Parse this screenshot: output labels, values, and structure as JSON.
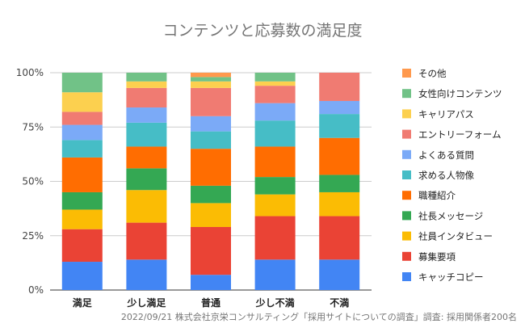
{
  "chart_data": {
    "type": "bar",
    "stacked": true,
    "percent": true,
    "title": "コンテンツと応募数の満足度",
    "footnote": "2022/09/21 株式会社京栄コンサルティング「採用サイトについての調査」調査: 採用関係者200名",
    "categories": [
      "満足",
      "少し満足",
      "普通",
      "少し不満",
      "不満"
    ],
    "ylim": [
      0,
      100
    ],
    "yticks": [
      "0%",
      "25%",
      "50%",
      "75%",
      "100%"
    ],
    "grid": true,
    "legend_position": "right",
    "series": [
      {
        "name": "キャッチコピー",
        "color": "#4285F4",
        "values": [
          13,
          14,
          7,
          14,
          14
        ]
      },
      {
        "name": "募集要項",
        "color": "#EA4335",
        "values": [
          15,
          17,
          22,
          20,
          20
        ]
      },
      {
        "name": "社員インタビュー",
        "color": "#FBBC04",
        "values": [
          9,
          15,
          11,
          10,
          11
        ]
      },
      {
        "name": "社長メッセージ",
        "color": "#34A853",
        "values": [
          8,
          10,
          8,
          8,
          8
        ]
      },
      {
        "name": "職種紹介",
        "color": "#FF6D01",
        "values": [
          16,
          10,
          17,
          14,
          17
        ]
      },
      {
        "name": "求める人物像",
        "color": "#46BDC6",
        "values": [
          8,
          11,
          8,
          12,
          11
        ]
      },
      {
        "name": "よくある質問",
        "color": "#7BAAF7",
        "values": [
          7,
          7,
          7,
          8,
          6
        ]
      },
      {
        "name": "エントリーフォーム",
        "color": "#F07B72",
        "values": [
          6,
          9,
          13,
          8,
          13
        ]
      },
      {
        "name": "キャリアパス",
        "color": "#FCD04F",
        "values": [
          9,
          3,
          3,
          2,
          0
        ]
      },
      {
        "name": "女性向けコンテンツ",
        "color": "#71C287",
        "values": [
          9,
          4,
          2,
          4,
          0
        ]
      },
      {
        "name": "その他",
        "color": "#FF994D",
        "values": [
          0,
          0,
          2,
          0,
          0
        ]
      }
    ]
  }
}
